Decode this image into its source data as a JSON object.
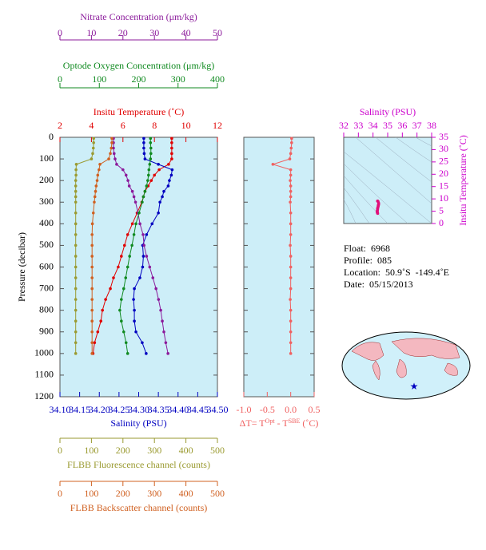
{
  "chart_data": [
    {
      "type": "profile",
      "ylabel": "Pressure (decibar)",
      "ylim": [
        1200,
        0
      ],
      "yticks": [
        0,
        100,
        200,
        300,
        400,
        500,
        600,
        700,
        800,
        900,
        1000,
        1100,
        1200
      ],
      "pressure": [
        5,
        25,
        50,
        75,
        100,
        125,
        150,
        175,
        200,
        225,
        250,
        275,
        300,
        350,
        400,
        450,
        500,
        550,
        600,
        650,
        700,
        750,
        800,
        850,
        900,
        950,
        1000
      ],
      "axes": [
        {
          "label": "Nitrate Concentration (μm/kg)",
          "color": "#8b1a9b",
          "xlim": [
            0,
            50
          ],
          "xticks": [
            0,
            10,
            20,
            30,
            40,
            50
          ]
        },
        {
          "label": "Optode Oxygen Concentration (μm/kg)",
          "color": "#108a20",
          "xlim": [
            0,
            400
          ],
          "xticks": [
            0,
            100,
            200,
            300,
            400
          ]
        },
        {
          "label": "Insitu Temperature (˚C)",
          "color": "#e00000",
          "xlim": [
            2,
            12
          ],
          "xticks": [
            2,
            4,
            6,
            8,
            10,
            12
          ]
        },
        {
          "label": "Salinity (PSU)",
          "color": "#0000c0",
          "xlim": [
            34.1,
            34.5
          ],
          "xticks": [
            {
              "value": 34.1,
              "label": "34.10"
            },
            34.15,
            {
              "value": 34.2,
              "label": "34.20"
            },
            34.25,
            {
              "value": 34.3,
              "label": "34.30"
            },
            34.35,
            {
              "value": 34.4,
              "label": "34.40"
            },
            34.45,
            {
              "value": 34.5,
              "label": "34.50"
            }
          ]
        },
        {
          "label": "FLBB Fluorescence channel (counts)",
          "color": "#9a9a30",
          "xlim": [
            0,
            500
          ],
          "xticks": [
            0,
            100,
            200,
            300,
            400,
            500
          ]
        },
        {
          "label": "FLBB Backscatter channel (counts)",
          "color": "#d06020",
          "xlim": [
            0,
            500
          ],
          "xticks": [
            0,
            100,
            200,
            300,
            400,
            500
          ]
        }
      ],
      "series": [
        {
          "axis": 2,
          "values": [
            9.1,
            9.1,
            9.1,
            9.1,
            9.1,
            8.9,
            8.3,
            8.0,
            7.8,
            7.6,
            7.4,
            7.3,
            7.2,
            6.9,
            6.6,
            6.3,
            6.1,
            5.9,
            5.7,
            5.4,
            5.2,
            4.9,
            4.7,
            4.6,
            4.4,
            4.2,
            4.1
          ]
        },
        {
          "axis": 3,
          "values": [
            34.313,
            34.313,
            34.313,
            34.314,
            34.316,
            34.35,
            34.385,
            34.383,
            34.378,
            34.375,
            34.364,
            34.36,
            34.354,
            34.35,
            34.334,
            34.32,
            34.31,
            34.312,
            34.31,
            34.303,
            34.289,
            34.287,
            34.289,
            34.289,
            34.293,
            34.309,
            34.319
          ]
        },
        {
          "axis": 0,
          "values": [
            17,
            17,
            17,
            17.2,
            17.5,
            18,
            20,
            21,
            21.6,
            22,
            23,
            23.5,
            24,
            24.8,
            25.4,
            26.4,
            26.7,
            27.5,
            28.5,
            29.5,
            30.5,
            31.3,
            32,
            32.5,
            33,
            33.6,
            34.3
          ]
        },
        {
          "axis": 1,
          "values": [
            230,
            230,
            231,
            231,
            230,
            228,
            226,
            225,
            223,
            220,
            216,
            212,
            209,
            201,
            193,
            188,
            183,
            177,
            172,
            167,
            162,
            156,
            152,
            156,
            162,
            168,
            172
          ]
        },
        {
          "axis": 4,
          "values": [
            107,
            107,
            106,
            104,
            100,
            52,
            51,
            51,
            50,
            50,
            50,
            50,
            50,
            50,
            50,
            50,
            50,
            50,
            50,
            50,
            50,
            50,
            50,
            50,
            50,
            50,
            50
          ]
        },
        {
          "axis": 5,
          "values": [
            165,
            165,
            163,
            160,
            155,
            127,
            124,
            120,
            118,
            115,
            113,
            111,
            109,
            106,
            103,
            102,
            102,
            102,
            102,
            102,
            102,
            102,
            102,
            102,
            102,
            102,
            102
          ]
        }
      ]
    },
    {
      "type": "delta",
      "xlabel": [
        "ΔT= T",
        "Opt",
        " - T",
        "SBE",
        " (˚C)"
      ],
      "color": "#f06060",
      "xlim": [
        -1.0,
        0.5
      ],
      "xticks": [
        {
          "value": -1.0,
          "label": "-1.0"
        },
        -0.5,
        {
          "value": 0.0,
          "label": "0.0"
        },
        0.5
      ],
      "values": [
        0.02,
        0.02,
        0.01,
        0.0,
        -0.02,
        -0.38,
        0.0,
        0.0,
        -0.01,
        0.0,
        0.0,
        0.0,
        -0.01,
        0.0,
        0.0,
        0.0,
        -0.01,
        0.0,
        0.0,
        0.0,
        0.0,
        -0.01,
        0.0,
        0.0,
        0.0,
        0.0,
        0.0
      ]
    },
    {
      "type": "ts",
      "xlabel": "Salinity (PSU)",
      "ylabel": "Insitu Temperature (˚C)",
      "axis_color": "#cc00cc",
      "color": "#e0107a",
      "xlim": [
        32,
        38
      ],
      "xticks": [
        32,
        33,
        34,
        35,
        36,
        37,
        38
      ],
      "ylim": [
        0,
        35
      ],
      "yticks": [
        0,
        5,
        10,
        15,
        20,
        25,
        30,
        35
      ]
    }
  ],
  "info": [
    "Float:  6968",
    "Profile:  085",
    "Location:  50.9˚S  -149.4˚E",
    "Date:  05/15/2013"
  ]
}
